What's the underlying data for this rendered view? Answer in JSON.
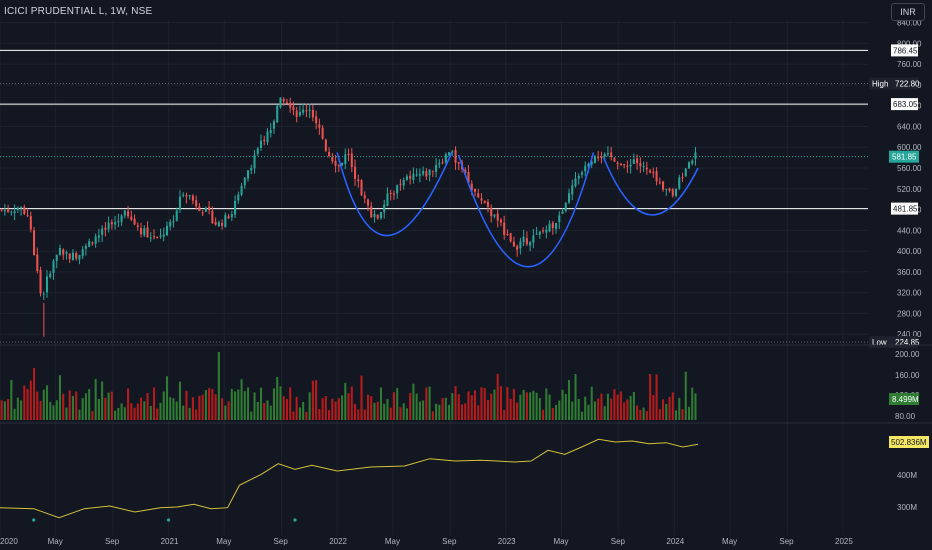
{
  "header": {
    "symbol_title": "ICICI PRUDENTIAL L, 1W, NSE",
    "currency": "INR"
  },
  "colors": {
    "background": "#131722",
    "up": "#26a69a",
    "down": "#ef5350",
    "vol_up": "#2e7d32",
    "vol_down": "#b71c1c",
    "pattern": "#2962ff",
    "line_indicator": "#d4c23a",
    "level_line": "#ffffff",
    "grid": "#1e222d"
  },
  "chart_data": [
    {
      "type": "candlestick",
      "title": "ICICI PRUDENTIAL L, 1W, NSE",
      "currency": "INR",
      "y_ticks": [
        "840.00",
        "800.00",
        "760.00",
        "720.00",
        "680.00",
        "640.00",
        "600.00",
        "560.00",
        "520.00",
        "480.00",
        "440.00",
        "400.00",
        "360.00",
        "320.00",
        "280.00",
        "240.00"
      ],
      "ylim": [
        225,
        845
      ],
      "x_tick_labels": [
        "2020",
        "May",
        "Sep",
        "2021",
        "May",
        "Sep",
        "2022",
        "May",
        "Sep",
        "2023",
        "May",
        "Sep",
        "2024",
        "May",
        "Sep",
        "2025"
      ],
      "last_price": "581.85",
      "high_label": "High",
      "high_value": "722.80",
      "low_label": "Low",
      "low_value": "224.85",
      "horizontal_levels": [
        "786.45",
        "683.05",
        "481.85"
      ],
      "price_path": [
        [
          2020.0,
          480
        ],
        [
          2020.05,
          478
        ],
        [
          2020.12,
          485
        ],
        [
          2020.18,
          470
        ],
        [
          2020.22,
          380
        ],
        [
          2020.26,
          300
        ],
        [
          2020.3,
          360
        ],
        [
          2020.36,
          400
        ],
        [
          2020.45,
          390
        ],
        [
          2020.55,
          420
        ],
        [
          2020.65,
          445
        ],
        [
          2020.75,
          470
        ],
        [
          2020.85,
          440
        ],
        [
          2020.95,
          420
        ],
        [
          2021.05,
          470
        ],
        [
          2021.1,
          520
        ],
        [
          2021.16,
          495
        ],
        [
          2021.25,
          470
        ],
        [
          2021.3,
          450
        ],
        [
          2021.38,
          470
        ],
        [
          2021.45,
          540
        ],
        [
          2021.52,
          580
        ],
        [
          2021.58,
          620
        ],
        [
          2021.62,
          640
        ],
        [
          2021.68,
          700
        ],
        [
          2021.72,
          690
        ],
        [
          2021.78,
          660
        ],
        [
          2021.84,
          680
        ],
        [
          2021.9,
          640
        ],
        [
          2021.95,
          590
        ],
        [
          2022.02,
          565
        ],
        [
          2022.07,
          590
        ],
        [
          2022.1,
          560
        ],
        [
          2022.18,
          490
        ],
        [
          2022.24,
          460
        ],
        [
          2022.3,
          500
        ],
        [
          2022.36,
          520
        ],
        [
          2022.45,
          545
        ],
        [
          2022.55,
          550
        ],
        [
          2022.62,
          575
        ],
        [
          2022.68,
          590
        ],
        [
          2022.74,
          560
        ],
        [
          2022.8,
          525
        ],
        [
          2022.85,
          500
        ],
        [
          2022.9,
          480
        ],
        [
          2022.96,
          460
        ],
        [
          2023.02,
          430
        ],
        [
          2023.08,
          410
        ],
        [
          2023.12,
          420
        ],
        [
          2023.2,
          430
        ],
        [
          2023.28,
          450
        ],
        [
          2023.35,
          470
        ],
        [
          2023.4,
          520
        ],
        [
          2023.48,
          570
        ],
        [
          2023.55,
          590
        ],
        [
          2023.6,
          580
        ],
        [
          2023.66,
          580
        ],
        [
          2023.72,
          555
        ],
        [
          2023.76,
          580
        ],
        [
          2023.82,
          560
        ],
        [
          2023.88,
          545
        ],
        [
          2023.94,
          515
        ],
        [
          2024.0,
          510
        ],
        [
          2024.05,
          540
        ],
        [
          2024.1,
          580
        ],
        [
          2024.14,
          582
        ]
      ],
      "volume_y_ticks": [
        "200.00",
        "160.00",
        "120.00",
        "80.00"
      ],
      "volume_last": "8.499M",
      "indicator_y_ticks": [
        "400M",
        "300M"
      ],
      "indicator_last": "502.836M"
    }
  ]
}
